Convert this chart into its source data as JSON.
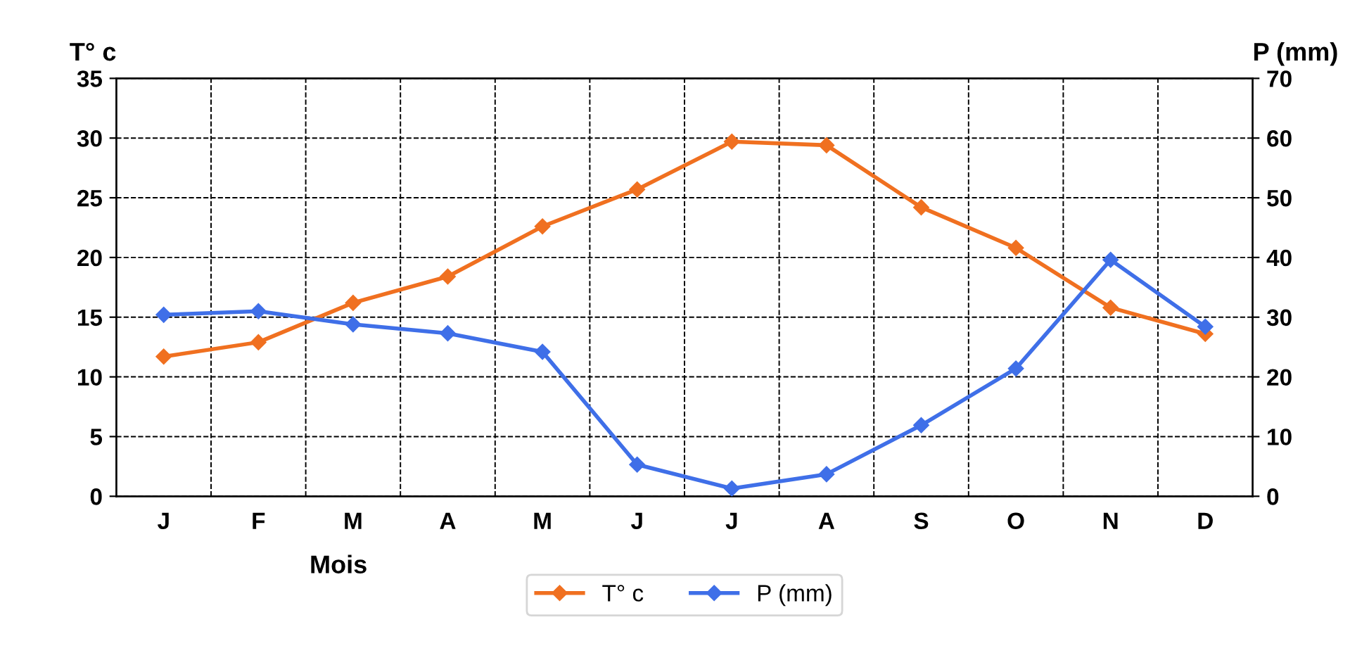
{
  "chart_data": {
    "type": "line",
    "categories": [
      "J",
      "F",
      "M",
      "A",
      "M",
      "J",
      "J",
      "A",
      "S",
      "O",
      "N",
      "D"
    ],
    "xlabel": "Mois",
    "ylabel": "T° c",
    "y2label": "P (mm)",
    "series": [
      {
        "name": "T° c",
        "color": "#f07020",
        "values": [
          11.7,
          12.9,
          16.2,
          18.4,
          22.6,
          25.7,
          29.7,
          29.4,
          24.2,
          20.8,
          15.8,
          13.6
        ]
      },
      {
        "name": "P (mm)",
        "color": "#3f6fe8",
        "axis": "y2",
        "values": [
          30.4,
          31.0,
          28.8,
          27.3,
          24.2,
          5.3,
          1.3,
          3.7,
          11.9,
          21.4,
          39.6,
          28.4
        ]
      }
    ],
    "ylim": [
      0,
      35
    ],
    "yticks": [
      0,
      5,
      10,
      15,
      20,
      25,
      30,
      35
    ],
    "y2lim": [
      0,
      70
    ],
    "y2ticks": [
      0,
      10,
      20,
      30,
      40,
      50,
      60,
      70
    ],
    "grid": true,
    "legend": "bottom",
    "marker": "diamond",
    "line_style": "solid"
  }
}
